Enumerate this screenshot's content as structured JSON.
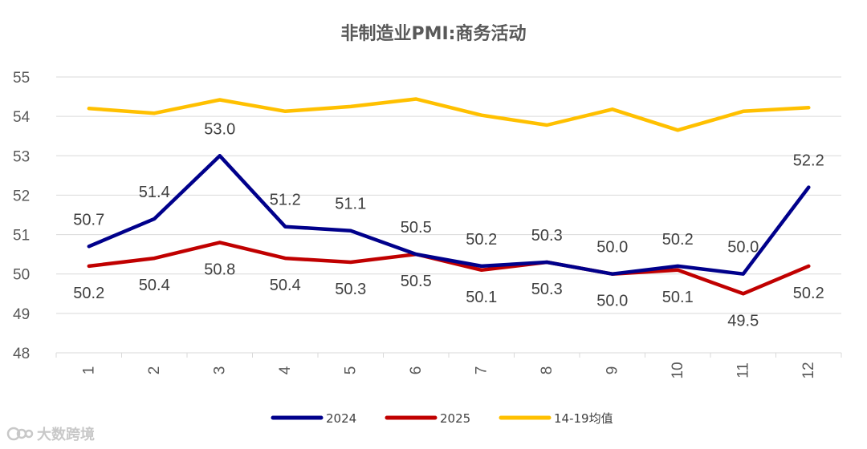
{
  "chart_data": {
    "type": "line",
    "title": "非制造业PMI:商务活动",
    "categories": [
      "1",
      "2",
      "3",
      "4",
      "5",
      "6",
      "7",
      "8",
      "9",
      "10",
      "11",
      "12"
    ],
    "ylim": [
      48,
      55
    ],
    "yticks": [
      48,
      49,
      50,
      51,
      52,
      53,
      54,
      55
    ],
    "grid": true,
    "legend_position": "bottom",
    "series": [
      {
        "name": "2024",
        "color": "#00008B",
        "values": [
          50.7,
          51.4,
          53.0,
          51.2,
          51.1,
          50.5,
          50.2,
          50.3,
          50.0,
          50.2,
          50.0,
          52.2
        ],
        "labels": [
          "50.7",
          "51.4",
          "53.0",
          "51.2",
          "51.1",
          "50.5",
          "50.2",
          "50.3",
          "50.0",
          "50.2",
          "50.0",
          "52.2"
        ],
        "label_position": "above"
      },
      {
        "name": "2025",
        "color": "#C00000",
        "values": [
          50.2,
          50.4,
          50.8,
          50.4,
          50.3,
          50.5,
          50.1,
          50.3,
          50.0,
          50.1,
          49.5,
          50.2
        ],
        "labels": [
          "50.2",
          "50.4",
          "50.8",
          "50.4",
          "50.3",
          "50.5",
          "50.1",
          "50.3",
          "50.0",
          "50.1",
          "49.5",
          "50.2"
        ],
        "label_position": "below"
      },
      {
        "name": "14-19均值",
        "color": "#FFC000",
        "values": [
          54.2,
          54.08,
          54.42,
          54.13,
          54.25,
          54.44,
          54.03,
          53.78,
          54.18,
          53.65,
          54.13,
          54.22
        ],
        "labels": null
      }
    ]
  },
  "watermark": {
    "text": "大数跨境"
  }
}
